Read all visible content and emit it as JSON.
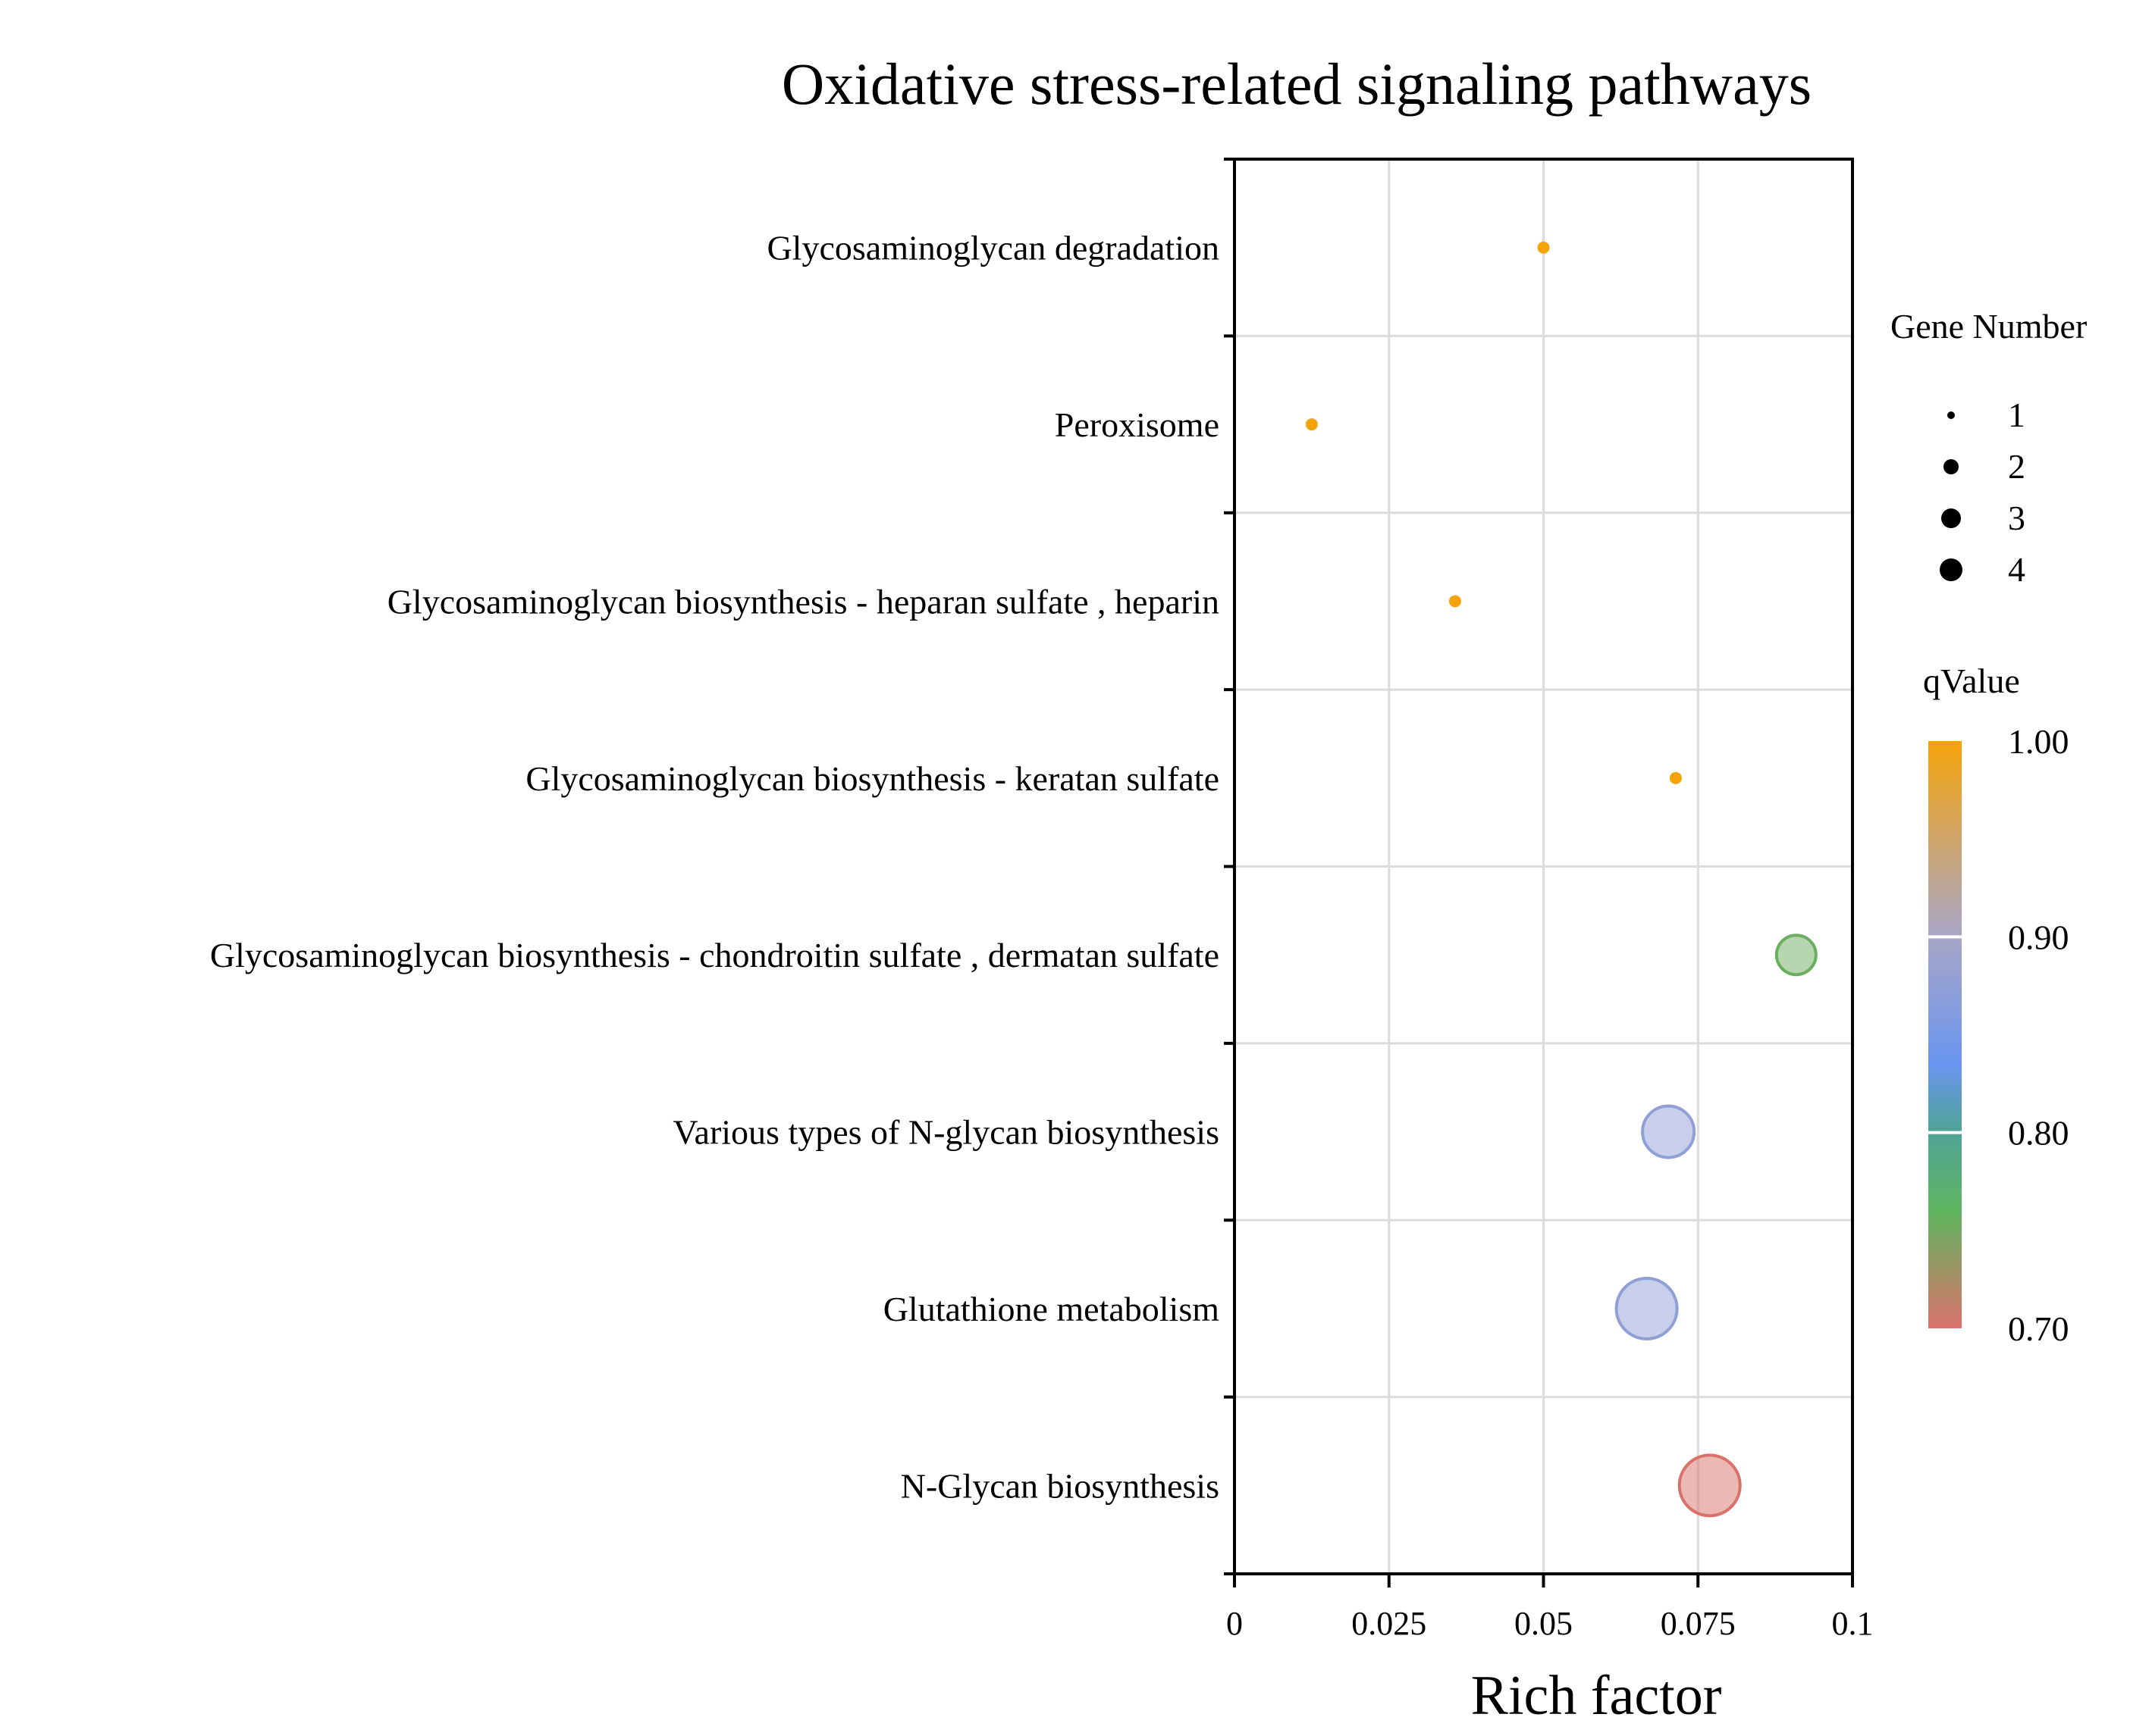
{
  "chart_data": {
    "type": "scatter",
    "title": "Oxidative stress-related signaling pathways",
    "xlabel": "Rich factor",
    "ylabel": "",
    "xlim": [
      0,
      0.1
    ],
    "x_ticks": [
      "0",
      "0.025",
      "0.05",
      "0.075",
      "0.1"
    ],
    "x_tick_values": [
      0,
      0.025,
      0.05,
      0.075,
      0.1
    ],
    "grid": true,
    "categories": [
      "Glycosaminoglycan degradation",
      "Peroxisome",
      "Glycosaminoglycan biosynthesis - heparan sulfate , heparin",
      "Glycosaminoglycan biosynthesis - keratan sulfate",
      "Glycosaminoglycan biosynthesis - chondroitin sulfate , dermatan sulfate",
      "Various types of N-glycan biosynthesis",
      "Glutathione metabolism",
      "N-Glycan biosynthesis"
    ],
    "points": [
      {
        "pathway": "Glycosaminoglycan degradation",
        "rich_factor": 0.05,
        "gene_number": 1,
        "q_value": 1.0
      },
      {
        "pathway": "Peroxisome",
        "rich_factor": 0.0125,
        "gene_number": 1,
        "q_value": 1.0
      },
      {
        "pathway": "Glycosaminoglycan biosynthesis - heparan sulfate , heparin",
        "rich_factor": 0.0357,
        "gene_number": 1,
        "q_value": 1.0
      },
      {
        "pathway": "Glycosaminoglycan biosynthesis - keratan sulfate",
        "rich_factor": 0.0714,
        "gene_number": 1,
        "q_value": 1.0
      },
      {
        "pathway": "Glycosaminoglycan biosynthesis - chondroitin sulfate , dermatan sulfate",
        "rich_factor": 0.0909,
        "gene_number": 2,
        "q_value": 0.79
      },
      {
        "pathway": "Various types of N-glycan biosynthesis",
        "rich_factor": 0.0702,
        "gene_number": 3,
        "q_value": 0.88
      },
      {
        "pathway": "Glutathione metabolism",
        "rich_factor": 0.0667,
        "gene_number": 4,
        "q_value": 0.88
      },
      {
        "pathway": "N-Glycan biosynthesis",
        "rich_factor": 0.0769,
        "gene_number": 4,
        "q_value": 0.7
      }
    ],
    "size_legend": {
      "title": "Gene Number",
      "values": [
        1,
        2,
        3,
        4
      ],
      "labels": [
        "1",
        "2",
        "3",
        "4"
      ]
    },
    "color_legend": {
      "title": "qValue",
      "min": 0.7,
      "max": 1.0,
      "tick_values": [
        1.0,
        0.9,
        0.8,
        0.7
      ],
      "tick_labels": [
        "1.00",
        "0.90",
        "0.80",
        "0.70"
      ],
      "colors": {
        "0.70": "#d9716a",
        "0.80": "#5fb55f",
        "0.85": "#6a95ef",
        "0.90": "#9aa6d4",
        "1.00": "#f5a30a"
      }
    },
    "legend_position": "right"
  }
}
